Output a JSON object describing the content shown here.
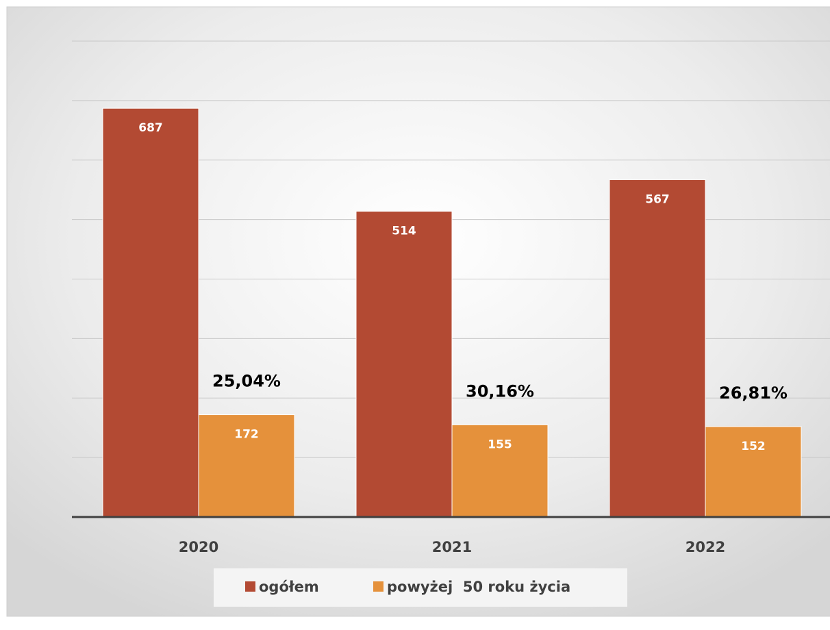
{
  "chart_data": {
    "type": "bar",
    "categories": [
      "2020",
      "2021",
      "2022"
    ],
    "series": [
      {
        "name": "ogółem",
        "color": "#b34a33",
        "values": [
          687,
          514,
          567
        ]
      },
      {
        "name": "powyżej  50 roku życia",
        "color": "#e5913b",
        "values": [
          172,
          155,
          152
        ]
      }
    ],
    "annotations": [
      "25,04%",
      "30,16%",
      "26,81%"
    ],
    "ylim": [
      0,
      800
    ],
    "yticks": [
      0,
      100,
      200,
      300,
      400,
      500,
      600,
      700,
      800
    ],
    "grid": true,
    "legend": "bottom"
  }
}
